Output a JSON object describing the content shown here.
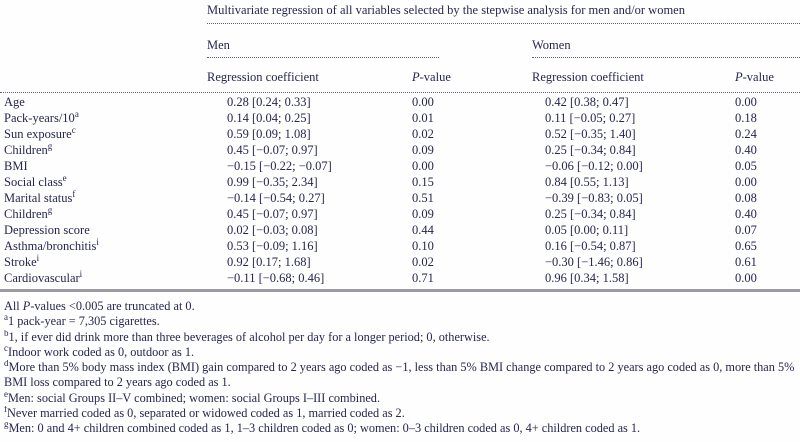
{
  "title": "Multivariate regression of all variables selected by the stepwise analysis for men and/or women",
  "colors": {
    "text": "#26264f",
    "dotted_rule": "#62627a",
    "solid_rule": "#9b9ba3",
    "background": "#fefefe"
  },
  "table": {
    "groups": {
      "men": "Men",
      "women": "Women"
    },
    "header": {
      "coef": "Regression coefficient",
      "p_italic": "P",
      "p_rest": "-value"
    },
    "rows": [
      {
        "label": "Age",
        "sup": "",
        "men_coef": "0.28 [0.24; 0.33]",
        "men_p": "0.00",
        "women_coef": "0.42 [0.38; 0.47]",
        "women_p": "0.00"
      },
      {
        "label": "Pack-years/10",
        "sup": "a",
        "men_coef": "0.14 [0.04; 0.25]",
        "men_p": "0.01",
        "women_coef": "0.11 [−0.05; 0.27]",
        "women_p": "0.18"
      },
      {
        "label": "Sun exposure",
        "sup": "c",
        "men_coef": "0.59 [0.09; 1.08]",
        "men_p": "0.02",
        "women_coef": "0.52 [−0.35; 1.40]",
        "women_p": "0.24"
      },
      {
        "label": "Children",
        "sup": "g",
        "men_coef": "0.45 [−0.07; 0.97]",
        "men_p": "0.09",
        "women_coef": "0.25 [−0.34; 0.84]",
        "women_p": "0.40"
      },
      {
        "label": "BMI",
        "sup": "",
        "men_coef": "−0.15 [−0.22; −0.07]",
        "men_p": "0.00",
        "women_coef": "−0.06 [−0.12; 0.00]",
        "women_p": "0.05"
      },
      {
        "label": "Social class",
        "sup": "e",
        "men_coef": "0.99 [−0.35; 2.34]",
        "men_p": "0.15",
        "women_coef": "0.84 [0.55; 1.13]",
        "women_p": "0.00"
      },
      {
        "label": "Marital status",
        "sup": "f",
        "men_coef": "−0.14 [−0.54; 0.27]",
        "men_p": "0.51",
        "women_coef": "−0.39 [−0.83; 0.05]",
        "women_p": "0.08"
      },
      {
        "label": "Children",
        "sup": "g",
        "men_coef": "0.45 [−0.07; 0.97]",
        "men_p": "0.09",
        "women_coef": "0.25 [−0.34; 0.84]",
        "women_p": "0.40"
      },
      {
        "label": "Depression score",
        "sup": "",
        "men_coef": "0.02 [−0.03; 0.08]",
        "men_p": "0.44",
        "women_coef": "0.05 [0.00; 0.11]",
        "women_p": "0.07"
      },
      {
        "label": "Asthma/bronchitis",
        "sup": "i",
        "men_coef": "0.53 [−0.09; 1.16]",
        "men_p": "0.10",
        "women_coef": "0.16 [−0.54; 0.87]",
        "women_p": "0.65"
      },
      {
        "label": "Stroke",
        "sup": "i",
        "men_coef": "0.92 [0.17; 1.68]",
        "men_p": "0.02",
        "women_coef": "−0.30 [−1.46; 0.86]",
        "women_p": "0.61"
      },
      {
        "label": "Cardiovascular",
        "sup": "i",
        "men_coef": "−0.11 [−0.68; 0.46]",
        "men_p": "0.71",
        "women_coef": "0.96 [0.34; 1.58]",
        "women_p": "0.00"
      }
    ]
  },
  "footnotes": [
    {
      "pre": "All ",
      "italic": "P",
      "post": "-values <0.005 are truncated at 0."
    },
    {
      "sup": "a",
      "text": "1 pack-year = 7,305 cigarettes."
    },
    {
      "sup": "b",
      "text": "1, if ever did drink more than three beverages of alcohol per day for a longer period; 0, otherwise."
    },
    {
      "sup": "c",
      "text": "Indoor work coded as 0, outdoor as 1."
    },
    {
      "sup": "d",
      "text": "More than 5% body mass index (BMI) gain compared to 2 years ago coded as −1, less than 5% BMI change compared to 2 years ago coded as 0, more than 5%"
    },
    {
      "text": "BMI loss compared to 2 years ago coded as 1."
    },
    {
      "sup": "e",
      "text": "Men: social Groups II–V combined; women: social Groups I–III combined."
    },
    {
      "sup": "f",
      "text": "Never married coded as 0, separated or widowed coded as 1, married coded as 2."
    },
    {
      "sup": "g",
      "text": "Men: 0 and 4+ children combined coded as 1, 1–3 children coded as 0; women: 0–3 children coded as 0, 4+ children coded as 1."
    }
  ]
}
